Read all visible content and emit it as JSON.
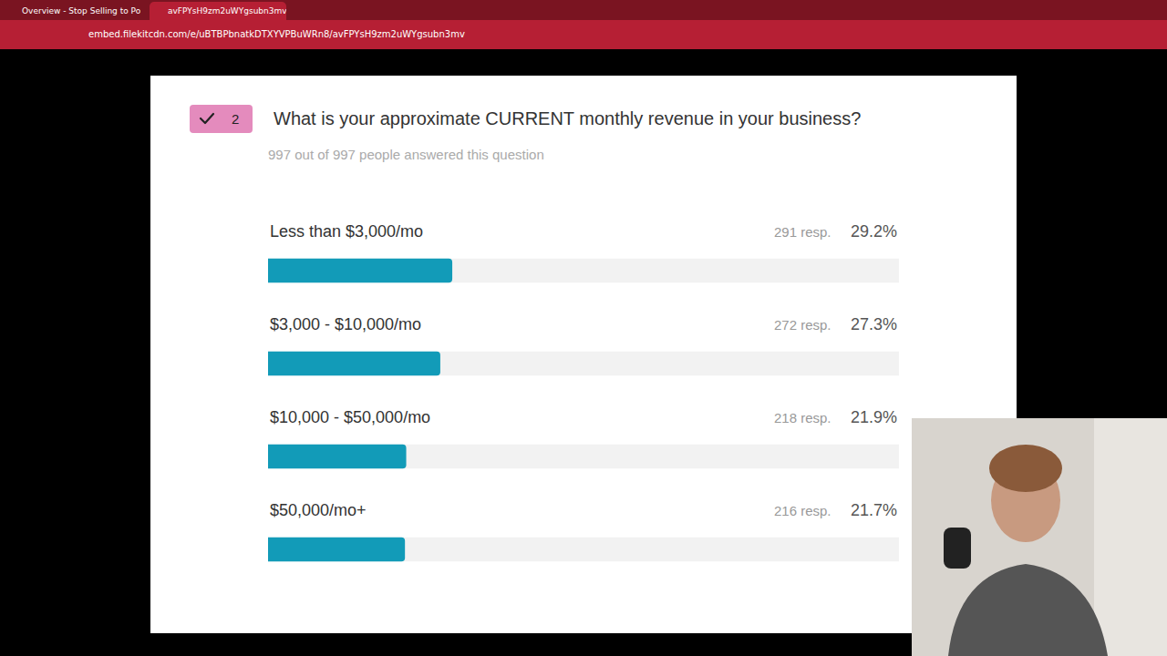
{
  "browser": {
    "tabs": [
      "Overview - Stop Selling to Po",
      "avFPYsH9zm2uWYgsubn3mv"
    ],
    "url": "embed.filekitcdn.com/e/uBTBPbnatkDTXYVPBuWRn8/avFPYsH9zm2uWYgsubn3mv"
  },
  "card": {
    "badge": "2"
  },
  "chart_data": {
    "type": "bar",
    "orientation": "horizontal",
    "title": "What is your approximate CURRENT monthly revenue in your business?",
    "subtitle": "997 out of 997 people answered this question",
    "categories": [
      "Less than $3,000/mo",
      "$3,000 - $10,000/mo",
      "$10,000 - $50,000/mo",
      "$50,000/mo+"
    ],
    "values": [
      29.2,
      27.3,
      21.9,
      21.7
    ],
    "value_labels": [
      "29.2%",
      "27.3%",
      "21.9%",
      "21.7%"
    ],
    "response_labels": [
      "291 resp.",
      "272 resp.",
      "218 resp.",
      "216 resp."
    ],
    "color": "#129bb8",
    "xlim": [
      0,
      100
    ],
    "data_labels": true,
    "tick_labels": false,
    "grid": false
  }
}
